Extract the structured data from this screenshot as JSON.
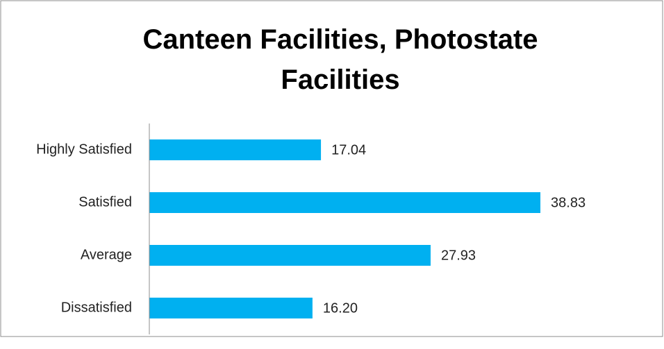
{
  "chart_data": {
    "type": "hbar",
    "title": "Canteen Facilities, Photostate Facilities",
    "categories": [
      "Highly Satisfied",
      "Satisfied",
      "Average",
      "Dissatisfied"
    ],
    "values": [
      17.04,
      38.83,
      27.93,
      16.2
    ],
    "value_labels": [
      "17.04",
      "38.83",
      "27.93",
      "16.20"
    ],
    "color": "#00b0f0",
    "xlim": [
      0,
      40
    ]
  }
}
